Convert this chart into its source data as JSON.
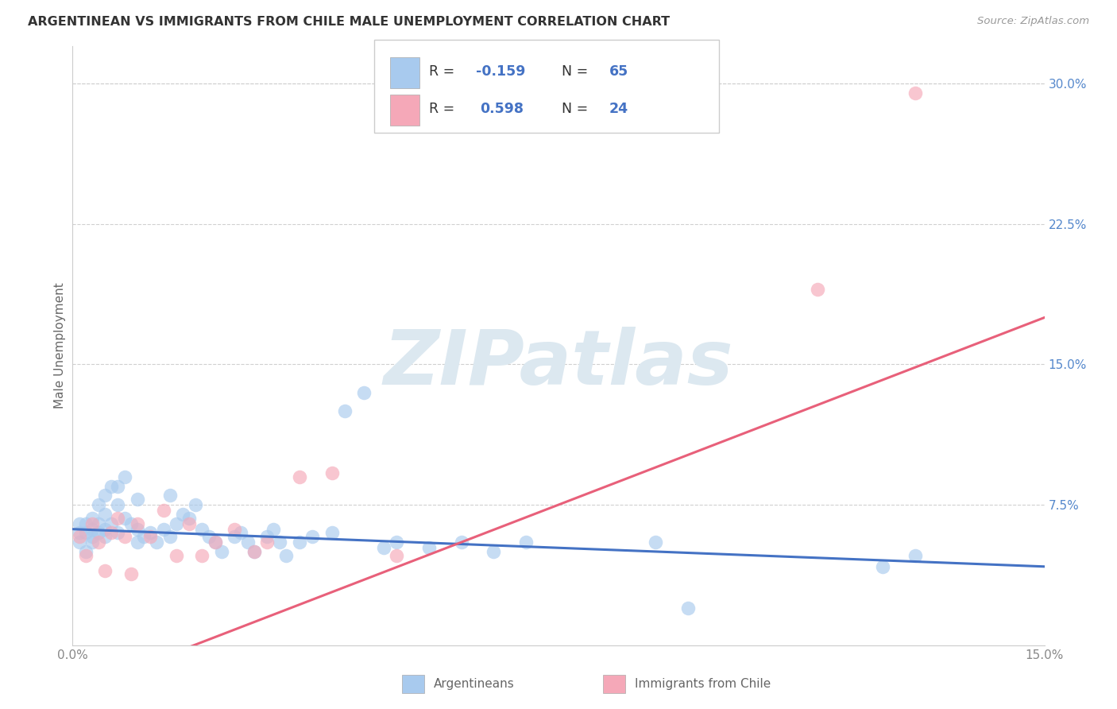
{
  "title": "ARGENTINEAN VS IMMIGRANTS FROM CHILE MALE UNEMPLOYMENT CORRELATION CHART",
  "source": "Source: ZipAtlas.com",
  "ylabel": "Male Unemployment",
  "xlim": [
    0.0,
    0.15
  ],
  "ylim": [
    -0.02,
    0.32
  ],
  "plot_ylim": [
    0.0,
    0.32
  ],
  "ytick_vals": [
    0.0,
    0.075,
    0.15,
    0.225,
    0.3
  ],
  "ytick_labels": [
    "",
    "7.5%",
    "15.0%",
    "22.5%",
    "30.0%"
  ],
  "xtick_vals": [
    0.0,
    0.05,
    0.1,
    0.15
  ],
  "xtick_labels": [
    "0.0%",
    "",
    "",
    "15.0%"
  ],
  "blue_color": "#A8CAEE",
  "pink_color": "#F5A8B8",
  "blue_line_color": "#4472C4",
  "pink_line_color": "#E8607A",
  "blue_R": -0.159,
  "blue_N": 65,
  "pink_R": 0.598,
  "pink_N": 24,
  "watermark_text": "ZIPatlas",
  "legend_label_blue": "Argentineans",
  "legend_label_pink": "Immigrants from Chile",
  "blue_x": [
    0.001,
    0.001,
    0.001,
    0.002,
    0.002,
    0.002,
    0.003,
    0.003,
    0.003,
    0.003,
    0.004,
    0.004,
    0.004,
    0.005,
    0.005,
    0.005,
    0.005,
    0.006,
    0.006,
    0.007,
    0.007,
    0.007,
    0.008,
    0.008,
    0.009,
    0.01,
    0.01,
    0.01,
    0.011,
    0.012,
    0.013,
    0.014,
    0.015,
    0.015,
    0.016,
    0.017,
    0.018,
    0.019,
    0.02,
    0.021,
    0.022,
    0.023,
    0.025,
    0.026,
    0.027,
    0.028,
    0.03,
    0.031,
    0.032,
    0.033,
    0.035,
    0.037,
    0.04,
    0.042,
    0.045,
    0.048,
    0.05,
    0.055,
    0.06,
    0.065,
    0.07,
    0.09,
    0.095,
    0.125,
    0.13
  ],
  "blue_y": [
    0.055,
    0.06,
    0.065,
    0.05,
    0.06,
    0.065,
    0.055,
    0.058,
    0.062,
    0.068,
    0.06,
    0.065,
    0.075,
    0.058,
    0.062,
    0.07,
    0.08,
    0.065,
    0.085,
    0.06,
    0.075,
    0.085,
    0.068,
    0.09,
    0.065,
    0.055,
    0.062,
    0.078,
    0.058,
    0.06,
    0.055,
    0.062,
    0.058,
    0.08,
    0.065,
    0.07,
    0.068,
    0.075,
    0.062,
    0.058,
    0.055,
    0.05,
    0.058,
    0.06,
    0.055,
    0.05,
    0.058,
    0.062,
    0.055,
    0.048,
    0.055,
    0.058,
    0.06,
    0.125,
    0.135,
    0.052,
    0.055,
    0.052,
    0.055,
    0.05,
    0.055,
    0.055,
    0.02,
    0.042,
    0.048
  ],
  "pink_x": [
    0.001,
    0.002,
    0.003,
    0.004,
    0.005,
    0.006,
    0.007,
    0.008,
    0.009,
    0.01,
    0.012,
    0.014,
    0.016,
    0.018,
    0.02,
    0.022,
    0.025,
    0.028,
    0.03,
    0.035,
    0.04,
    0.05,
    0.115,
    0.13
  ],
  "pink_y": [
    0.058,
    0.048,
    0.065,
    0.055,
    0.04,
    0.06,
    0.068,
    0.058,
    0.038,
    0.065,
    0.058,
    0.072,
    0.048,
    0.065,
    0.048,
    0.055,
    0.062,
    0.05,
    0.055,
    0.09,
    0.092,
    0.048,
    0.19,
    0.295
  ],
  "blue_line_x0": 0.0,
  "blue_line_y0": 0.062,
  "blue_line_x1": 0.15,
  "blue_line_y1": 0.042,
  "pink_line_x0": 0.0,
  "pink_line_y0": -0.025,
  "pink_line_x1": 0.15,
  "pink_line_y1": 0.175
}
